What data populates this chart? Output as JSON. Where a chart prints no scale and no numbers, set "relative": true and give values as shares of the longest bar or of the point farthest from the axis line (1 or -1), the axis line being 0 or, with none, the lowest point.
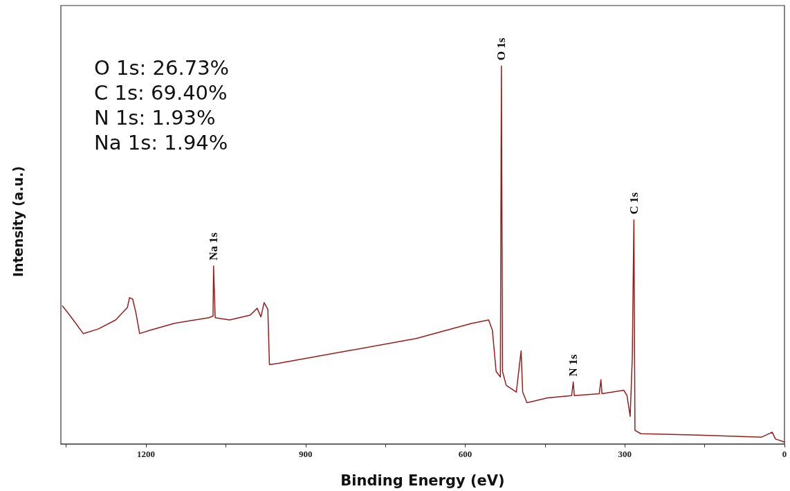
{
  "chart_data": {
    "type": "line",
    "xlabel": "Binding Energy (eV)",
    "ylabel": "Intensity (a.u.)",
    "relative": true,
    "marker": "none",
    "line_style": "solid",
    "grid": false,
    "xlim": [
      1360,
      0
    ],
    "xticks": [
      {
        "value": 1350,
        "label": null
      },
      1200,
      {
        "value": 1050,
        "label": null
      },
      900,
      {
        "value": 750,
        "label": null
      },
      600,
      {
        "value": 450,
        "label": null
      },
      300,
      {
        "value": 150,
        "label": null
      },
      0
    ],
    "series": [
      {
        "color": "#9b1b1b",
        "x": [
          1357,
          1342,
          1318,
          1290,
          1257,
          1235,
          1231,
          1225,
          1219,
          1212,
          1192,
          1147,
          1082,
          1074,
          1073,
          1070,
          1043,
          1004,
          991,
          984,
          978,
          971,
          968,
          952,
          822,
          692,
          588,
          556,
          549,
          542,
          534,
          532,
          530,
          523,
          504,
          495,
          492,
          484,
          445,
          400,
          397,
          395,
          348,
          345,
          343,
          302,
          296,
          290,
          286,
          283,
          281,
          270,
          173,
          43,
          23,
          17,
          0
        ],
        "values": [
          0.365,
          0.338,
          0.292,
          0.304,
          0.328,
          0.361,
          0.387,
          0.383,
          0.347,
          0.292,
          0.301,
          0.319,
          0.334,
          0.338,
          0.471,
          0.334,
          0.328,
          0.341,
          0.359,
          0.336,
          0.374,
          0.356,
          0.21,
          0.213,
          0.246,
          0.279,
          0.319,
          0.328,
          0.301,
          0.192,
          0.177,
          1.0,
          0.192,
          0.155,
          0.137,
          0.246,
          0.137,
          0.109,
          0.122,
          0.128,
          0.164,
          0.128,
          0.133,
          0.17,
          0.133,
          0.142,
          0.128,
          0.073,
          0.228,
          0.593,
          0.036,
          0.027,
          0.024,
          0.018,
          0.031,
          0.013,
          0.005
        ]
      }
    ],
    "annotations": [
      "O 1s: 26.73%",
      "C 1s: 69.40%",
      "N 1s: 1.93%",
      "Na 1s: 1.94%",
      {
        "text": "O 1s",
        "x": 532,
        "y": 1.0
      },
      {
        "text": "C 1s",
        "x": 283,
        "y": 0.593
      },
      {
        "text": "N 1s",
        "x": 397,
        "y": 0.164
      },
      {
        "text": "Na 1s",
        "x": 1073,
        "y": 0.471
      }
    ]
  }
}
